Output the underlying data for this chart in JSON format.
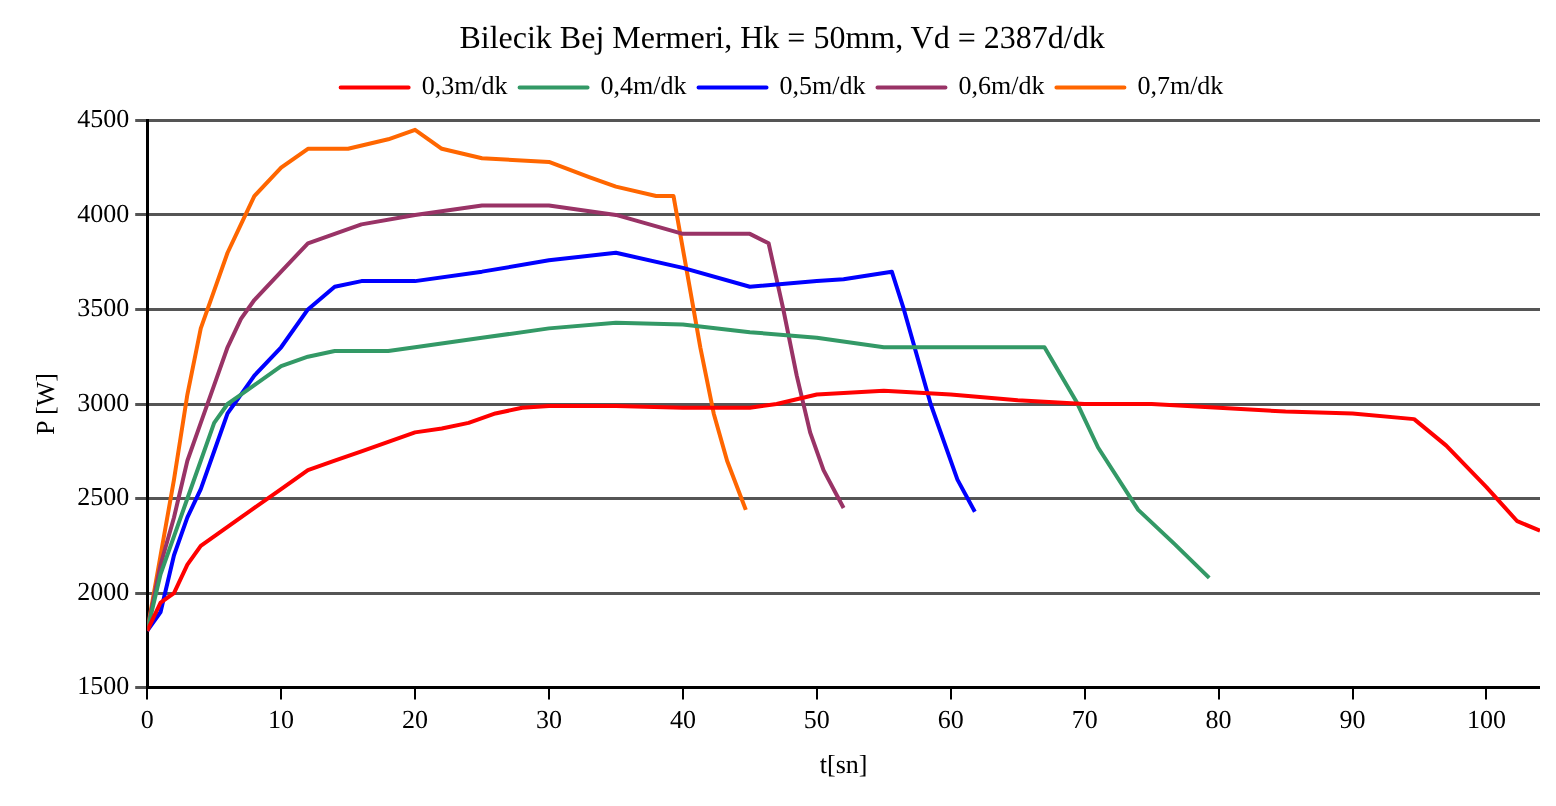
{
  "chart_data": {
    "type": "line",
    "title": "Bilecik Bej Mermeri, Hk = 50mm, Vd = 2387d/dk",
    "xlabel": "t[sn]",
    "ylabel": "P [W]",
    "xlim": [
      0,
      104
    ],
    "xticks": [
      0,
      10,
      20,
      30,
      40,
      50,
      60,
      70,
      80,
      90,
      100
    ],
    "ylim": [
      1500,
      4500
    ],
    "yticks": [
      1500,
      2000,
      2500,
      3000,
      3500,
      4000,
      4500
    ],
    "grid": "y",
    "legend": "top",
    "marker": "none",
    "line_style": "solid",
    "series": [
      {
        "name": "0,3m/dk",
        "color": "#ff0000",
        "x": [
          0,
          1,
          2,
          3,
          4,
          5,
          6,
          7,
          8,
          10,
          12,
          14,
          16,
          18,
          20,
          22,
          24,
          26,
          28,
          30,
          35,
          40,
          45,
          47,
          50,
          55,
          60,
          65,
          70,
          75,
          80,
          85,
          90,
          94.6,
          97,
          100,
          102.3,
          104
        ],
        "values": [
          1800,
          1950,
          2000,
          2150,
          2250,
          2300,
          2350,
          2400,
          2450,
          2550,
          2650,
          2700,
          2750,
          2800,
          2850,
          2870,
          2900,
          2950,
          2980,
          2990,
          2990,
          2980,
          2980,
          3000,
          3050,
          3070,
          3050,
          3020,
          3000,
          3000,
          2980,
          2960,
          2950,
          2920,
          2780,
          2560,
          2380,
          2330
        ]
      },
      {
        "name": "0,4m/dk",
        "color": "#339966",
        "x": [
          0,
          1,
          2,
          3,
          4,
          5,
          6,
          7,
          8,
          10,
          12,
          14,
          18,
          20,
          25,
          30,
          35,
          40,
          45,
          50,
          55,
          60,
          65,
          67,
          69.4,
          71,
          74,
          76.7,
          79.3
        ],
        "values": [
          1800,
          2100,
          2300,
          2500,
          2700,
          2900,
          3000,
          3050,
          3100,
          3200,
          3250,
          3280,
          3280,
          3300,
          3350,
          3400,
          3430,
          3420,
          3380,
          3350,
          3300,
          3300,
          3300,
          3300,
          3010,
          2770,
          2440,
          2260,
          2080
        ]
      },
      {
        "name": "0,5m/dk",
        "color": "#0000ff",
        "x": [
          0,
          1,
          2,
          3,
          4,
          5,
          6,
          7,
          8,
          10,
          12,
          14,
          16,
          20,
          25,
          30,
          35,
          40,
          45,
          50,
          52,
          55.6,
          56.5,
          57.5,
          58.5,
          59.5,
          60.5,
          61.8
        ],
        "values": [
          1800,
          1900,
          2200,
          2400,
          2550,
          2750,
          2950,
          3050,
          3150,
          3300,
          3500,
          3620,
          3650,
          3650,
          3700,
          3760,
          3800,
          3720,
          3620,
          3650,
          3660,
          3700,
          3500,
          3250,
          3000,
          2800,
          2600,
          2430
        ]
      },
      {
        "name": "0,6m/dk",
        "color": "#993366",
        "x": [
          0,
          1,
          2,
          3,
          4,
          5,
          6,
          7,
          8,
          10,
          12,
          14,
          16,
          20,
          25,
          30,
          35,
          40,
          45,
          46.4,
          47.5,
          48.5,
          49.5,
          50.5,
          52
        ],
        "values": [
          1800,
          2150,
          2400,
          2700,
          2900,
          3100,
          3300,
          3450,
          3550,
          3700,
          3850,
          3900,
          3950,
          4000,
          4050,
          4050,
          4000,
          3900,
          3900,
          3850,
          3500,
          3150,
          2850,
          2650,
          2450
        ]
      },
      {
        "name": "0,7m/dk",
        "color": "#ff6600",
        "x": [
          0,
          1,
          2,
          3,
          4,
          5,
          6,
          7,
          8,
          10,
          12,
          15,
          18,
          20,
          22,
          25,
          30,
          33,
          35,
          38,
          39.3,
          40.3,
          41.3,
          42.3,
          43.3,
          44.7
        ],
        "values": [
          1800,
          2200,
          2600,
          3050,
          3400,
          3600,
          3800,
          3950,
          4100,
          4250,
          4350,
          4350,
          4400,
          4450,
          4350,
          4300,
          4280,
          4200,
          4150,
          4100,
          4100,
          3700,
          3300,
          2950,
          2700,
          2440
        ]
      }
    ]
  }
}
